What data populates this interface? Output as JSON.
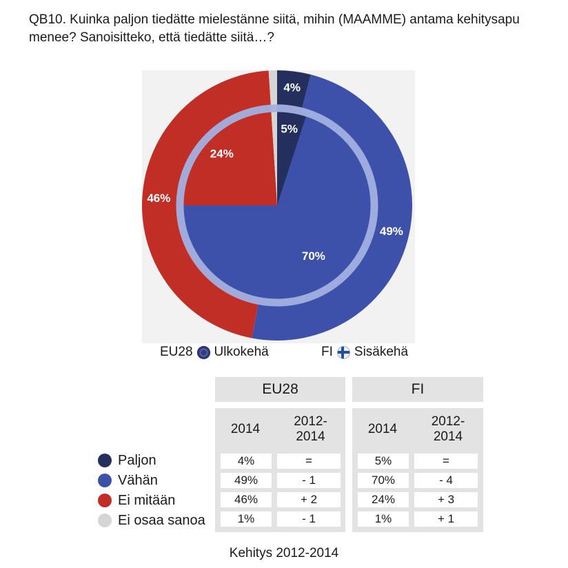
{
  "title": "QB10. Kuinka paljon tiedätte mielestänne siitä, mihin (MAAMME) antama kehitysapu menee? Sanoisitteko, että tiedätte siitä…?",
  "ring_legend": {
    "outer": {
      "code": "EU28",
      "label": "Ulkokehä"
    },
    "inner": {
      "code": "FI",
      "label": "Sisäkehä"
    }
  },
  "colors": {
    "Paljon": "#242f5e",
    "Vähän": "#3d51ab",
    "Ei mitään": "#c12e26",
    "Ei osaa sanoa": "#d5d5d5",
    "ring": "#a3b0e0",
    "pie_background": "#f2f2f2"
  },
  "chart_data": {
    "type": "pie",
    "categories": [
      "Paljon",
      "Vähän",
      "Ei mitään",
      "Ei osaa sanoa"
    ],
    "series": [
      {
        "name": "EU28",
        "ring": "outer",
        "values": [
          4,
          49,
          46,
          1
        ],
        "labels": [
          "4%",
          "49%",
          "46%",
          ""
        ]
      },
      {
        "name": "FI",
        "ring": "inner",
        "values": [
          5,
          70,
          24,
          1
        ],
        "labels": [
          "5%",
          "70%",
          "24%",
          ""
        ]
      }
    ]
  },
  "table": {
    "groups": [
      "EU28",
      "FI"
    ],
    "col_year": "2014",
    "col_change": "2012-\n2014",
    "rows": [
      {
        "label": "Paljon",
        "eu_2014": "4%",
        "eu_change": "=",
        "fi_2014": "5%",
        "fi_change": "="
      },
      {
        "label": "Vähän",
        "eu_2014": "49%",
        "eu_change": "- 1",
        "fi_2014": "70%",
        "fi_change": "- 4"
      },
      {
        "label": "Ei mitään",
        "eu_2014": "46%",
        "eu_change": "+ 2",
        "fi_2014": "24%",
        "fi_change": "+ 3"
      },
      {
        "label": "Ei osaa sanoa",
        "eu_2014": "1%",
        "eu_change": "- 1",
        "fi_2014": "1%",
        "fi_change": "+ 1"
      }
    ]
  },
  "footer": "Kehitys 2012-2014"
}
